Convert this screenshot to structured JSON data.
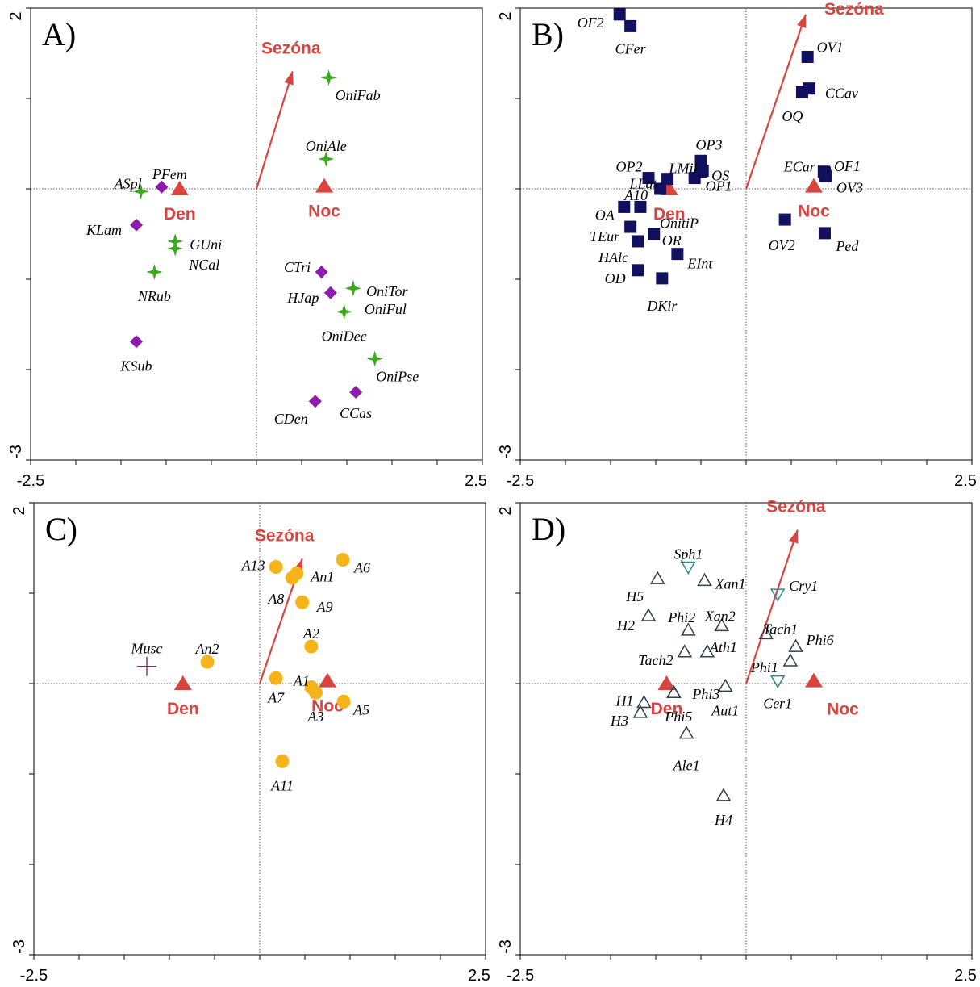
{
  "colors": {
    "env": "#d9443f",
    "starGreen": "#3caa1f",
    "diamondPurple": "#8e1bab",
    "squareNavy": "#10105e",
    "circleOrange": "#f7b31a",
    "plusPurple": "#8a2a5e",
    "triUpOutline": "#2e3f4e",
    "triDownOutline": "#2b8b93"
  },
  "chart_data": [
    {
      "panel": "A)",
      "type": "scatter",
      "xlim": [
        -2.5,
        2.5
      ],
      "ylim": [
        -3,
        2
      ],
      "x_tick_labels": [
        "-2.5",
        "2.5"
      ],
      "y_tick_labels": [
        "2",
        "-3"
      ],
      "arrow": {
        "label": "Sezóna",
        "x": 0.4,
        "y": 1.3
      },
      "centroids": [
        {
          "label": "Den",
          "x": -0.85,
          "y": 0.0
        },
        {
          "label": "Noc",
          "x": 0.75,
          "y": 0.03
        }
      ],
      "points": [
        {
          "label": "OniFab",
          "shape": "star",
          "x": 0.8,
          "y": 1.23
        },
        {
          "label": "OniAle",
          "shape": "star",
          "x": 0.77,
          "y": 0.33
        },
        {
          "label": "ASpl",
          "shape": "star",
          "x": -1.28,
          "y": -0.03
        },
        {
          "label": "PFem",
          "shape": "diamond",
          "x": -1.05,
          "y": 0.02
        },
        {
          "label": "KLam",
          "shape": "diamond",
          "x": -1.33,
          "y": -0.4
        },
        {
          "label": "GUni",
          "shape": "star",
          "x": -0.9,
          "y": -0.58
        },
        {
          "label": "NCal",
          "shape": "star",
          "x": -0.9,
          "y": -0.66
        },
        {
          "label": "NRub",
          "shape": "star",
          "x": -1.13,
          "y": -0.92
        },
        {
          "label": "CTri",
          "shape": "diamond",
          "x": 0.72,
          "y": -0.92
        },
        {
          "label": "HJap",
          "shape": "diamond",
          "x": 0.82,
          "y": -1.15
        },
        {
          "label": "OniTor",
          "shape": "star",
          "x": 1.07,
          "y": -1.1
        },
        {
          "label": "OniFul",
          "shape": "star",
          "x": 1.07,
          "y": -1.1
        },
        {
          "label": "OniDec",
          "shape": "star",
          "x": 0.97,
          "y": -1.36
        },
        {
          "label": "KSub",
          "shape": "diamond",
          "x": -1.33,
          "y": -1.69
        },
        {
          "label": "OniPse",
          "shape": "star",
          "x": 1.31,
          "y": -1.88
        },
        {
          "label": "CCas",
          "shape": "diamond",
          "x": 1.1,
          "y": -2.25
        },
        {
          "label": "CDen",
          "shape": "diamond",
          "x": 0.65,
          "y": -2.35
        }
      ]
    },
    {
      "panel": "B)",
      "type": "scatter",
      "xlim": [
        -2.5,
        2.5
      ],
      "ylim": [
        -3,
        2
      ],
      "x_tick_labels": [
        "-2.5",
        "2.5"
      ],
      "y_tick_labels": [
        "2",
        "-3"
      ],
      "arrow": {
        "label": "Sezóna",
        "x": 0.66,
        "y": 1.93
      },
      "centroids": [
        {
          "label": "Den",
          "x": -0.85,
          "y": 0.0
        },
        {
          "label": "Noc",
          "x": 0.75,
          "y": 0.03
        }
      ],
      "points": [
        {
          "label": "OF2",
          "shape": "square",
          "x": -1.4,
          "y": 1.93
        },
        {
          "label": "CFer",
          "shape": "square",
          "x": -1.28,
          "y": 1.8
        },
        {
          "label": "OV1",
          "shape": "square",
          "x": 0.68,
          "y": 1.46
        },
        {
          "label": "CCav",
          "shape": "square",
          "x": 0.7,
          "y": 1.11
        },
        {
          "label": "OQ",
          "shape": "square",
          "x": 0.62,
          "y": 1.07
        },
        {
          "label": "OP3",
          "shape": "square",
          "x": -0.5,
          "y": 0.31
        },
        {
          "label": "LMil",
          "shape": "square",
          "x": -0.5,
          "y": 0.19
        },
        {
          "label": "OS",
          "shape": "square",
          "x": -0.48,
          "y": 0.2
        },
        {
          "label": "OP1",
          "shape": "square",
          "x": -0.57,
          "y": 0.12
        },
        {
          "label": "OP2",
          "shape": "square",
          "x": -1.08,
          "y": 0.12
        },
        {
          "label": "LLat",
          "shape": "square",
          "x": -0.87,
          "y": 0.11
        },
        {
          "label": "A10",
          "shape": "square",
          "x": -0.95,
          "y": 0.0
        },
        {
          "label": "ECar",
          "shape": "square",
          "x": 0.86,
          "y": 0.19
        },
        {
          "label": "OF1",
          "shape": "square",
          "x": 0.87,
          "y": 0.18
        },
        {
          "label": "OV3",
          "shape": "square",
          "x": 0.88,
          "y": 0.14
        },
        {
          "label": "OA",
          "shape": "square",
          "x": -1.35,
          "y": -0.2
        },
        {
          "label": "OnitiP",
          "shape": "square",
          "x": -1.17,
          "y": -0.2
        },
        {
          "label": "TEur",
          "shape": "square",
          "x": -1.28,
          "y": -0.42
        },
        {
          "label": "OR",
          "shape": "square",
          "x": -1.02,
          "y": -0.5
        },
        {
          "label": "HAlc",
          "shape": "square",
          "x": -1.2,
          "y": -0.58
        },
        {
          "label": "EInt",
          "shape": "square",
          "x": -0.76,
          "y": -0.72
        },
        {
          "label": "OD",
          "shape": "square",
          "x": -1.2,
          "y": -0.9
        },
        {
          "label": "DKir",
          "shape": "square",
          "x": -0.93,
          "y": -0.99
        },
        {
          "label": "OV2",
          "shape": "square",
          "x": 0.43,
          "y": -0.34
        },
        {
          "label": "Ped",
          "shape": "square",
          "x": 0.87,
          "y": -0.49
        }
      ]
    },
    {
      "panel": "C)",
      "type": "scatter",
      "xlim": [
        -2.5,
        2.5
      ],
      "ylim": [
        -3,
        2
      ],
      "x_tick_labels": [
        "-2.5",
        "2.5"
      ],
      "y_tick_labels": [
        "2",
        "-3"
      ],
      "arrow": {
        "label": "Sezóna",
        "x": 0.47,
        "y": 1.38
      },
      "centroids": [
        {
          "label": "Den",
          "x": -0.85,
          "y": 0.0
        },
        {
          "label": "Noc",
          "x": 0.75,
          "y": 0.03
        }
      ],
      "points": [
        {
          "label": "Musc",
          "shape": "plus",
          "x": -1.25,
          "y": 0.19
        },
        {
          "label": "An2",
          "shape": "circle",
          "x": -0.58,
          "y": 0.24
        },
        {
          "label": "A13",
          "shape": "circle",
          "x": 0.18,
          "y": 1.29
        },
        {
          "label": "An1",
          "shape": "circle",
          "x": 0.41,
          "y": 1.22
        },
        {
          "label": "A6",
          "shape": "circle",
          "x": 0.92,
          "y": 1.37
        },
        {
          "label": "A8",
          "shape": "circle",
          "x": 0.36,
          "y": 1.17
        },
        {
          "label": "A9",
          "shape": "circle",
          "x": 0.47,
          "y": 0.9
        },
        {
          "label": "A2",
          "shape": "circle",
          "x": 0.57,
          "y": 0.41
        },
        {
          "label": "A7",
          "shape": "circle",
          "x": 0.18,
          "y": 0.06
        },
        {
          "label": "A1",
          "shape": "circle",
          "x": 0.57,
          "y": -0.04
        },
        {
          "label": "A3",
          "shape": "circle",
          "x": 0.62,
          "y": -0.1
        },
        {
          "label": "A5",
          "shape": "circle",
          "x": 0.93,
          "y": -0.2
        },
        {
          "label": "A11",
          "shape": "circle",
          "x": 0.25,
          "y": -0.86
        }
      ]
    },
    {
      "panel": "D)",
      "type": "scatter",
      "xlim": [
        -2.5,
        2.5
      ],
      "ylim": [
        -3,
        2
      ],
      "x_tick_labels": [
        "-2.5",
        "2.5"
      ],
      "y_tick_labels": [
        "2",
        "-3"
      ],
      "arrow": {
        "label": "Sezóna",
        "x": 0.57,
        "y": 1.7
      },
      "centroids": [
        {
          "label": "Den",
          "x": -0.88,
          "y": 0.0
        },
        {
          "label": "Noc",
          "x": 0.75,
          "y": 0.03
        }
      ],
      "points": [
        {
          "label": "Sph1",
          "shape": "tri-down",
          "x": -0.64,
          "y": 1.29
        },
        {
          "label": "Xan1",
          "shape": "tri-up",
          "x": -0.46,
          "y": 1.14
        },
        {
          "label": "H5",
          "shape": "tri-up",
          "x": -0.98,
          "y": 1.16
        },
        {
          "label": "Cry1",
          "shape": "tri-down",
          "x": 0.35,
          "y": 0.99
        },
        {
          "label": "H2",
          "shape": "tri-up",
          "x": -1.08,
          "y": 0.75
        },
        {
          "label": "Phi2",
          "shape": "tri-up",
          "x": -0.64,
          "y": 0.59
        },
        {
          "label": "Xan2",
          "shape": "tri-up",
          "x": -0.27,
          "y": 0.64
        },
        {
          "label": "Tach1",
          "shape": "tri-up",
          "x": 0.22,
          "y": 0.55
        },
        {
          "label": "Phi6",
          "shape": "tri-up",
          "x": 0.55,
          "y": 0.41
        },
        {
          "label": "Tach2",
          "shape": "tri-up",
          "x": -0.68,
          "y": 0.35
        },
        {
          "label": "Ath1",
          "shape": "tri-up",
          "x": -0.43,
          "y": 0.35
        },
        {
          "label": "Phi1",
          "shape": "tri-up",
          "x": 0.49,
          "y": 0.25
        },
        {
          "label": "Cer1",
          "shape": "tri-down",
          "x": 0.35,
          "y": 0.03
        },
        {
          "label": "Phi3",
          "shape": "tri-up",
          "x": -0.8,
          "y": -0.1
        },
        {
          "label": "Aut1",
          "shape": "tri-up",
          "x": -0.23,
          "y": -0.03
        },
        {
          "label": "H1",
          "shape": "tri-up",
          "x": -1.13,
          "y": -0.21
        },
        {
          "label": "H3",
          "shape": "tri-up",
          "x": -1.17,
          "y": -0.32
        },
        {
          "label": "Phi5",
          "shape": "tri-up",
          "x": -0.8,
          "y": -0.1
        },
        {
          "label": "Ale1",
          "shape": "tri-up",
          "x": -0.66,
          "y": -0.55
        },
        {
          "label": "H4",
          "shape": "tri-up",
          "x": -0.25,
          "y": -1.24
        }
      ]
    }
  ]
}
